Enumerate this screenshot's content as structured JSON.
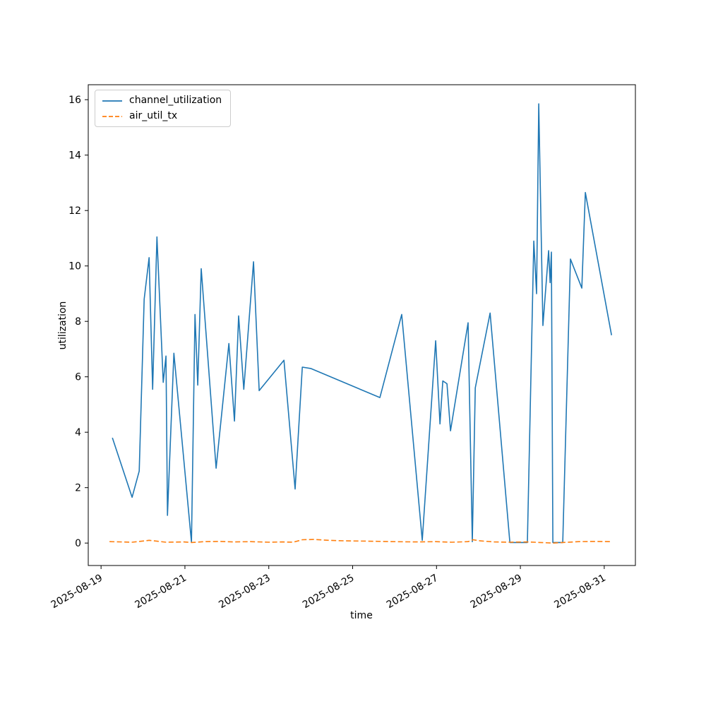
{
  "chart_data": {
    "type": "line",
    "title": "",
    "xlabel": "time",
    "ylabel": "utilization",
    "grid": false,
    "legend_position": "upper left",
    "ylim": [
      -0.81,
      16.54
    ],
    "y_ticks": [
      0,
      2,
      4,
      6,
      8,
      10,
      12,
      14,
      16
    ],
    "x_axis": {
      "start": "2025-08-18T16:40",
      "end": "2025-08-31T17:50",
      "tick_dates": [
        "2025-08-19",
        "2025-08-21",
        "2025-08-23",
        "2025-08-25",
        "2025-08-27",
        "2025-08-29",
        "2025-08-31"
      ],
      "tick_rotation_deg": 30
    },
    "series": [
      {
        "name": "channel_utilization",
        "color": "#1f77b4",
        "style": "solid",
        "points": [
          [
            "2025-08-19T06:30",
            3.8
          ],
          [
            "2025-08-19T17:45",
            1.65
          ],
          [
            "2025-08-19T21:50",
            2.6
          ],
          [
            "2025-08-20T00:40",
            8.8
          ],
          [
            "2025-08-20T03:30",
            10.3
          ],
          [
            "2025-08-20T05:30",
            5.55
          ],
          [
            "2025-08-20T08:00",
            11.05
          ],
          [
            "2025-08-20T11:35",
            5.8
          ],
          [
            "2025-08-20T13:10",
            6.75
          ],
          [
            "2025-08-20T14:00",
            1.0
          ],
          [
            "2025-08-20T17:40",
            6.85
          ],
          [
            "2025-08-21T03:45",
            0.03
          ],
          [
            "2025-08-21T05:45",
            8.25
          ],
          [
            "2025-08-21T07:20",
            5.7
          ],
          [
            "2025-08-21T09:20",
            9.9
          ],
          [
            "2025-08-21T17:50",
            2.7
          ],
          [
            "2025-08-22T01:10",
            7.2
          ],
          [
            "2025-08-22T04:20",
            4.4
          ],
          [
            "2025-08-22T06:45",
            8.2
          ],
          [
            "2025-08-22T09:40",
            5.55
          ],
          [
            "2025-08-22T15:15",
            10.15
          ],
          [
            "2025-08-22T18:30",
            5.5
          ],
          [
            "2025-08-23T08:40",
            6.6
          ],
          [
            "2025-08-23T15:05",
            1.95
          ],
          [
            "2025-08-23T19:10",
            6.35
          ],
          [
            "2025-08-24T00:00",
            6.3
          ],
          [
            "2025-08-25T15:35",
            5.25
          ],
          [
            "2025-08-26T04:05",
            8.25
          ],
          [
            "2025-08-26T15:50",
            0.1
          ],
          [
            "2025-08-26T23:30",
            7.3
          ],
          [
            "2025-08-27T02:00",
            4.3
          ],
          [
            "2025-08-27T03:35",
            5.85
          ],
          [
            "2025-08-27T06:00",
            5.75
          ],
          [
            "2025-08-27T08:00",
            4.05
          ],
          [
            "2025-08-27T18:05",
            7.95
          ],
          [
            "2025-08-27T20:30",
            0.05
          ],
          [
            "2025-08-27T22:10",
            5.6
          ],
          [
            "2025-08-28T06:40",
            8.3
          ],
          [
            "2025-08-28T18:00",
            0.02
          ],
          [
            "2025-08-28T23:10",
            0.02
          ],
          [
            "2025-08-29T04:00",
            0.02
          ],
          [
            "2025-08-29T07:40",
            10.9
          ],
          [
            "2025-08-29T09:15",
            9.0
          ],
          [
            "2025-08-29T10:30",
            15.85
          ],
          [
            "2025-08-29T12:55",
            7.85
          ],
          [
            "2025-08-29T16:10",
            10.55
          ],
          [
            "2025-08-29T17:00",
            9.4
          ],
          [
            "2025-08-29T17:45",
            10.5
          ],
          [
            "2025-08-29T18:35",
            0.02
          ],
          [
            "2025-08-29T21:25",
            0.02
          ],
          [
            "2025-08-30T00:15",
            0.02
          ],
          [
            "2025-08-30T04:40",
            10.25
          ],
          [
            "2025-08-30T11:10",
            9.2
          ],
          [
            "2025-08-30T13:10",
            12.65
          ],
          [
            "2025-08-31T04:10",
            7.5
          ]
        ]
      },
      {
        "name": "air_util_tx",
        "color": "#ff7f0e",
        "style": "dashed",
        "points": [
          [
            "2025-08-19T04:50",
            0.05
          ],
          [
            "2025-08-19T17:45",
            0.03
          ],
          [
            "2025-08-20T01:00",
            0.08
          ],
          [
            "2025-08-20T03:30",
            0.1
          ],
          [
            "2025-08-20T06:20",
            0.08
          ],
          [
            "2025-08-20T13:10",
            0.03
          ],
          [
            "2025-08-20T23:15",
            0.04
          ],
          [
            "2025-08-21T03:45",
            0.02
          ],
          [
            "2025-08-21T11:25",
            0.05
          ],
          [
            "2025-08-21T19:30",
            0.06
          ],
          [
            "2025-08-22T03:35",
            0.04
          ],
          [
            "2025-08-22T13:40",
            0.05
          ],
          [
            "2025-08-22T23:45",
            0.03
          ],
          [
            "2025-08-23T07:50",
            0.04
          ],
          [
            "2025-08-23T13:55",
            0.03
          ],
          [
            "2025-08-23T19:10",
            0.12
          ],
          [
            "2025-08-24T02:00",
            0.13
          ],
          [
            "2025-08-24T10:05",
            0.1
          ],
          [
            "2025-08-24T20:10",
            0.08
          ],
          [
            "2025-08-25T08:25",
            0.07
          ],
          [
            "2025-08-25T22:35",
            0.05
          ],
          [
            "2025-08-26T12:35",
            0.04
          ],
          [
            "2025-08-26T23:30",
            0.05
          ],
          [
            "2025-08-27T08:50",
            0.03
          ],
          [
            "2025-08-27T18:05",
            0.05
          ],
          [
            "2025-08-27T20:55",
            0.12
          ],
          [
            "2025-08-28T01:00",
            0.08
          ],
          [
            "2025-08-28T09:05",
            0.04
          ],
          [
            "2025-08-28T17:55",
            0.03
          ],
          [
            "2025-08-29T04:00",
            0.04
          ],
          [
            "2025-08-29T11:20",
            0.02
          ],
          [
            "2025-08-29T18:35",
            0.0
          ],
          [
            "2025-08-30T00:15",
            0.02
          ],
          [
            "2025-08-30T09:30",
            0.05
          ],
          [
            "2025-08-30T17:35",
            0.06
          ],
          [
            "2025-08-31T04:10",
            0.05
          ]
        ]
      }
    ]
  }
}
